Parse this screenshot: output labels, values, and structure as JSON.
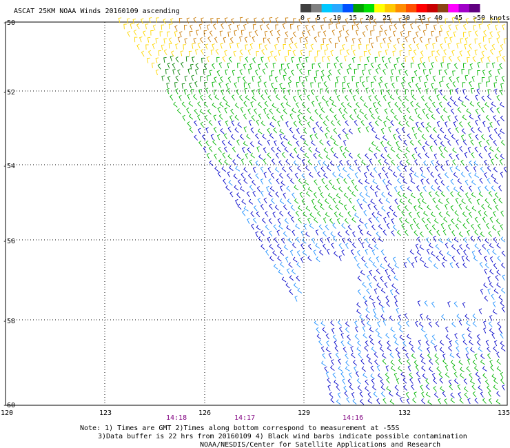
{
  "title": "ASCAT 25KM NOAA Winds 20160109 ascending",
  "legend": {
    "unit_label": ">50 knots",
    "tick_labels": [
      "0",
      "5",
      "10",
      "15",
      "20",
      "25",
      "30",
      "35",
      "40",
      "45"
    ],
    "colors": [
      "#404040",
      "#808080",
      "#00c8ff",
      "#2aa8ff",
      "#0050ff",
      "#00a000",
      "#00e000",
      "#ffff00",
      "#ffc800",
      "#ff8c00",
      "#ff5000",
      "#ff0000",
      "#c80000",
      "#8b4513",
      "#ff00ff",
      "#a000c8",
      "#600080"
    ]
  },
  "axes": {
    "lat_labels": [
      "-50",
      "-52",
      "-54",
      "-56",
      "-58",
      "-60"
    ],
    "lon_labels": [
      "120",
      "123",
      "126",
      "129",
      "132",
      "135"
    ],
    "time_labels": [
      "14:18",
      "14:17",
      "14:16"
    ],
    "time_color": "#800080"
  },
  "notes": [
    "Note: 1) Times are GMT 2)Times along bottom correspond to measurement at -55S",
    "3)Data buffer is 22 hrs from 20160109 4) Black wind barbs indicate possible contamination",
    "NOAA/NESDIS/Center for Satellite Applications and Research"
  ],
  "wind_colors": {
    "orange": "#c87800",
    "yellow": "#ffd700",
    "green": "#00b400",
    "dark_green": "#008000",
    "blue": "#0000c8",
    "light_blue": "#1e90ff"
  }
}
